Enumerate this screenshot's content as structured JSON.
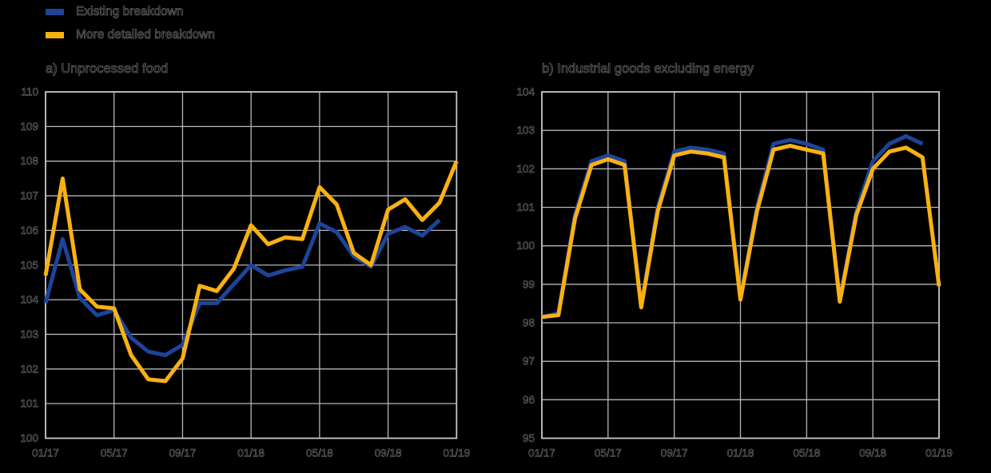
{
  "legend": {
    "items": [
      {
        "label": "Existing breakdown",
        "color": "#1e4499"
      },
      {
        "label": "More detailed breakdown",
        "color": "#f9b112"
      }
    ]
  },
  "chart_data": [
    {
      "type": "line",
      "title": "a) Unprocessed food",
      "grid": true,
      "legend_position": "top-left",
      "ylim": [
        100,
        110
      ],
      "y_ticks": [
        100,
        101,
        102,
        103,
        104,
        105,
        106,
        107,
        108,
        109,
        110
      ],
      "months": [
        "01/17",
        "02/17",
        "03/17",
        "04/17",
        "05/17",
        "06/17",
        "07/17",
        "08/17",
        "09/17",
        "10/17",
        "11/17",
        "12/17",
        "01/18",
        "02/18",
        "03/18",
        "04/18",
        "05/18",
        "06/18",
        "07/18",
        "08/18",
        "09/18",
        "10/18",
        "11/18",
        "12/18",
        "01/19"
      ],
      "x_tick_indices": [
        0,
        4,
        8,
        12,
        16,
        20,
        24
      ],
      "x_tick_labels": [
        "01/17",
        "05/17",
        "09/17",
        "01/18",
        "05/18",
        "09/18",
        "01/19"
      ],
      "series": [
        {
          "name": "Existing breakdown",
          "color": "#1e4499",
          "values": [
            103.9,
            105.75,
            104.05,
            103.55,
            103.7,
            102.9,
            102.5,
            102.4,
            102.7,
            103.9,
            103.9,
            104.45,
            105.0,
            104.7,
            104.85,
            104.95,
            106.2,
            105.95,
            105.25,
            104.95,
            105.9,
            106.1,
            105.85,
            106.3,
            null
          ]
        },
        {
          "name": "More detailed breakdown",
          "color": "#f9b112",
          "values": [
            104.7,
            107.5,
            104.3,
            103.8,
            103.75,
            102.4,
            101.7,
            101.65,
            102.3,
            104.4,
            104.25,
            104.9,
            106.15,
            105.6,
            105.8,
            105.75,
            107.25,
            106.75,
            105.35,
            105.0,
            106.6,
            106.9,
            106.3,
            106.8,
            108.0
          ]
        }
      ]
    },
    {
      "type": "line",
      "title": "b) Industrial goods excluding energy",
      "grid": true,
      "legend_position": "top-left",
      "ylim": [
        95,
        104
      ],
      "y_ticks": [
        95,
        96,
        97,
        98,
        99,
        100,
        101,
        102,
        103,
        104
      ],
      "months": [
        "01/17",
        "02/17",
        "03/17",
        "04/17",
        "05/17",
        "06/17",
        "07/17",
        "08/17",
        "09/17",
        "10/17",
        "11/17",
        "12/17",
        "01/18",
        "02/18",
        "03/18",
        "04/18",
        "05/18",
        "06/18",
        "07/18",
        "08/18",
        "09/18",
        "10/18",
        "11/18",
        "12/18",
        "01/19"
      ],
      "x_tick_indices": [
        0,
        4,
        8,
        12,
        16,
        20,
        24
      ],
      "x_tick_labels": [
        "01/17",
        "05/17",
        "09/17",
        "01/18",
        "05/18",
        "09/18",
        "01/19"
      ],
      "series": [
        {
          "name": "Existing breakdown",
          "color": "#1e4499",
          "values": [
            98.15,
            98.25,
            100.8,
            102.2,
            102.35,
            102.2,
            98.45,
            101.0,
            102.45,
            102.55,
            102.5,
            102.4,
            98.65,
            101.0,
            102.65,
            102.75,
            102.65,
            102.5,
            98.6,
            100.9,
            102.2,
            102.65,
            102.85,
            102.65,
            null
          ]
        },
        {
          "name": "More detailed breakdown",
          "color": "#f9b112",
          "values": [
            98.15,
            98.2,
            100.7,
            102.1,
            102.25,
            102.1,
            98.4,
            100.9,
            102.35,
            102.45,
            102.4,
            102.3,
            98.6,
            100.9,
            102.5,
            102.6,
            102.5,
            102.4,
            98.55,
            100.8,
            102.0,
            102.45,
            102.55,
            102.3,
            98.95
          ]
        }
      ]
    }
  ]
}
